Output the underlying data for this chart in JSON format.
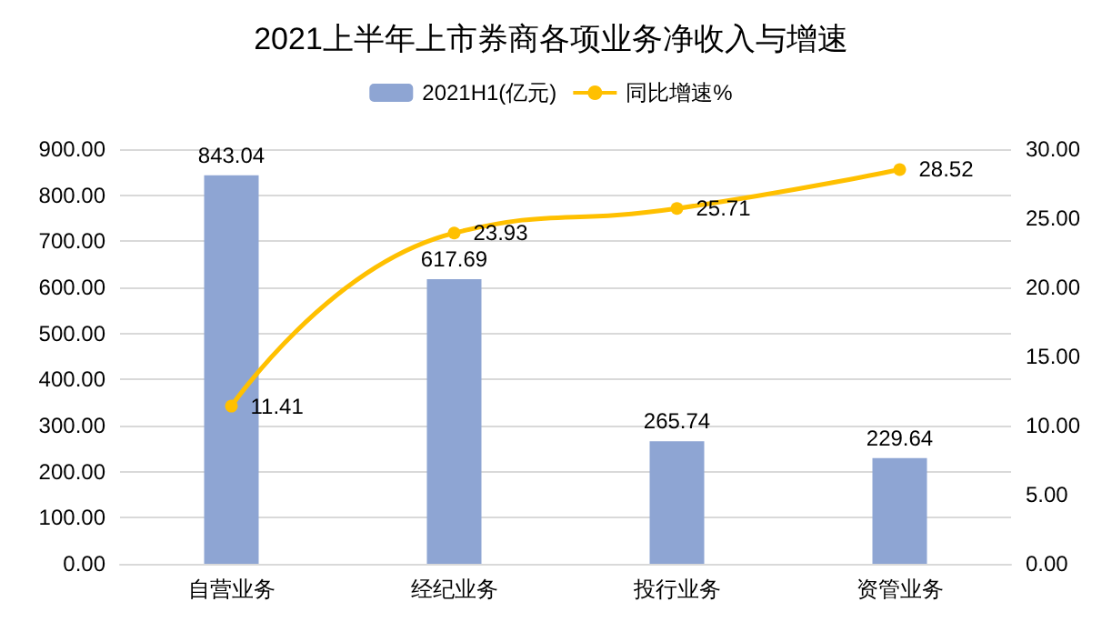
{
  "chart_data": {
    "type": "bar",
    "title": "2021上半年上市券商各项业务净收入与增速",
    "categories": [
      "自营业务",
      "经纪业务",
      "投行业务",
      "资管业务"
    ],
    "series": [
      {
        "name": "2021H1(亿元)",
        "color": "#8eA5d3",
        "values": [
          843.04,
          617.69,
          265.74,
          229.64
        ]
      },
      {
        "name": "同比增速%",
        "type": "line",
        "axis": "y2",
        "color": "#ffc000",
        "values": [
          11.41,
          23.93,
          25.71,
          28.52
        ],
        "marker": "circle"
      }
    ],
    "data_labels": true,
    "grid": "y",
    "legend": "top",
    "ylim": [
      0,
      900
    ],
    "yticks": [
      {
        "value": 0,
        "label": "0.00"
      },
      {
        "value": 100,
        "label": "100.00"
      },
      {
        "value": 200,
        "label": "200.00"
      },
      {
        "value": 300,
        "label": "300.00"
      },
      {
        "value": 400,
        "label": "400.00"
      },
      {
        "value": 500,
        "label": "500.00"
      },
      {
        "value": 600,
        "label": "600.00"
      },
      {
        "value": 700,
        "label": "700.00"
      },
      {
        "value": 800,
        "label": "800.00"
      },
      {
        "value": 900,
        "label": "900.00"
      }
    ],
    "y2lim": [
      0,
      30
    ],
    "y2ticks": [
      {
        "value": 0,
        "label": "0.00"
      },
      {
        "value": 5,
        "label": "5.00"
      },
      {
        "value": 10,
        "label": "10.00"
      },
      {
        "value": 15,
        "label": "15.00"
      },
      {
        "value": 20,
        "label": "20.00"
      },
      {
        "value": 25,
        "label": "25.00"
      },
      {
        "value": 30,
        "label": "30.00"
      }
    ]
  }
}
